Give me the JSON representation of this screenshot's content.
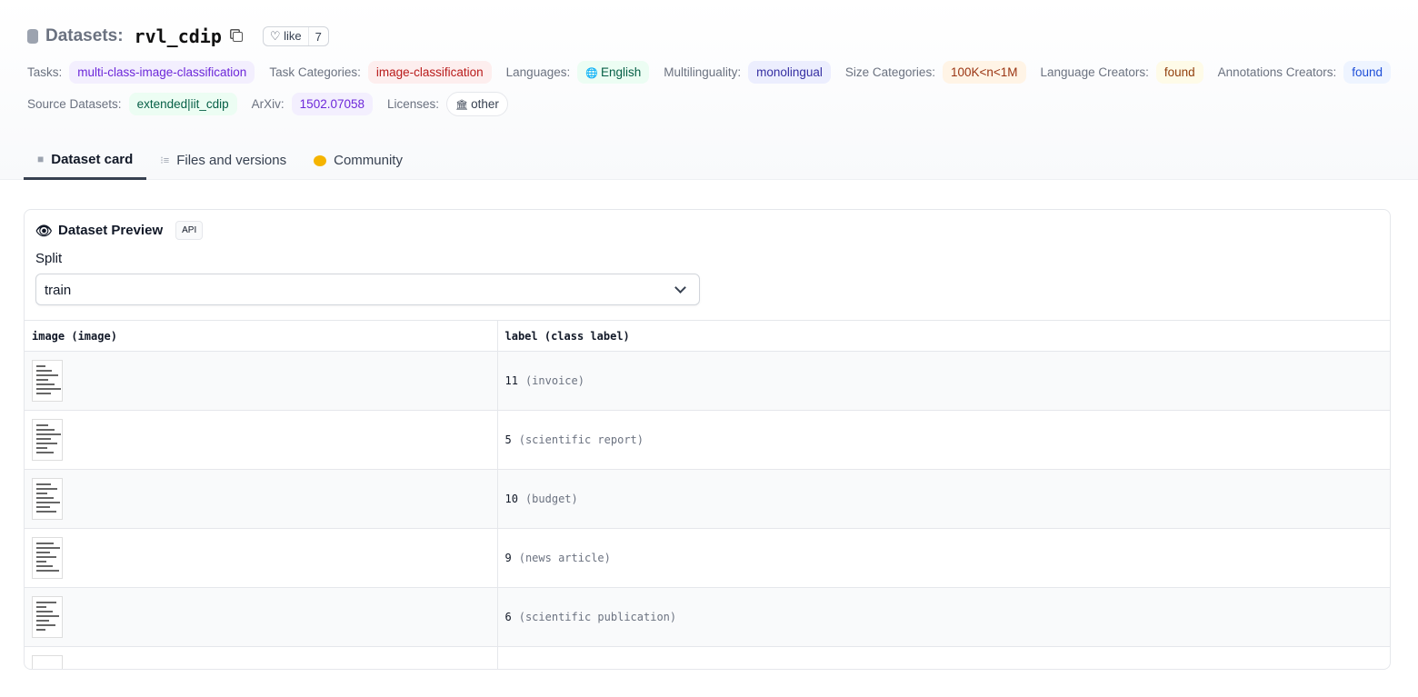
{
  "header": {
    "label": "Datasets:",
    "name": "rvl_cdip",
    "like_label": "like",
    "like_count": "7"
  },
  "tags_row1": [
    {
      "label": "Tasks:",
      "value": "multi-class-image-classification",
      "bg": "#f3effe",
      "fg": "#6d28d9"
    },
    {
      "label": "Task Categories:",
      "value": "image-classification",
      "bg": "#fdeeee",
      "fg": "#b91c1c"
    },
    {
      "label": "Languages:",
      "value": "English",
      "bg": "#ecfdf3",
      "fg": "#065f46",
      "icon": "globe-icon"
    },
    {
      "label": "Multilinguality:",
      "value": "monolingual",
      "bg": "#eceefe",
      "fg": "#3730a3"
    },
    {
      "label": "Size Categories:",
      "value": "100K<n<1M",
      "bg": "#fff4e6",
      "fg": "#9a3412"
    },
    {
      "label": "Language Creators:",
      "value": "found",
      "bg": "#fefbe8",
      "fg": "#92400e"
    },
    {
      "label": "Annotations Creators:",
      "value": "found",
      "bg": "#eef4ff",
      "fg": "#1d4ed8"
    }
  ],
  "tags_row2": [
    {
      "label": "Source Datasets:",
      "value": "extended|iit_cdip",
      "bg": "#ecfdf3",
      "fg": "#065f46"
    },
    {
      "label": "ArXiv:",
      "value": "1502.07058",
      "bg": "#f3effe",
      "fg": "#6d28d9"
    },
    {
      "label": "Licenses:",
      "value": "other",
      "bg": "#ffffff",
      "fg": "#374151",
      "icon": "bank-icon"
    }
  ],
  "tabs": [
    {
      "label": "Dataset card",
      "icon": "cube-icon"
    },
    {
      "label": "Files and versions",
      "icon": "files-icon"
    },
    {
      "label": "Community",
      "icon": "hand-icon"
    }
  ],
  "preview": {
    "title": "Dataset Preview",
    "api": "API",
    "split_label": "Split",
    "split_value": "train",
    "columns": [
      "image (image)",
      "label (class label)"
    ],
    "rows": [
      {
        "label": "11",
        "class": "(invoice)"
      },
      {
        "label": "5",
        "class": "(scientific report)"
      },
      {
        "label": "10",
        "class": "(budget)"
      },
      {
        "label": "9",
        "class": "(news article)"
      },
      {
        "label": "6",
        "class": "(scientific publication)"
      }
    ]
  }
}
